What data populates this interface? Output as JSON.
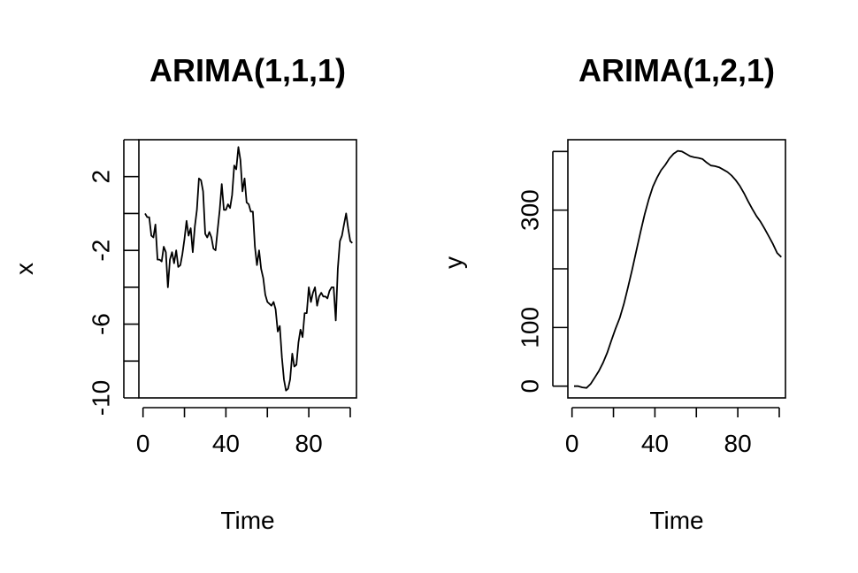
{
  "chart_data": [
    {
      "type": "line",
      "title": "ARIMA(1,1,1)",
      "xlabel": "Time",
      "ylabel": "x",
      "xlim": [
        -2,
        103
      ],
      "ylim": [
        -10,
        4
      ],
      "xticks": [
        0,
        20,
        40,
        60,
        80,
        100
      ],
      "xtick_labels": [
        "0",
        "",
        "40",
        "",
        "80",
        ""
      ],
      "yticks": [
        -10,
        -8,
        -6,
        -4,
        -2,
        0,
        2,
        4
      ],
      "ytick_labels": [
        "-10",
        "",
        "-6",
        "",
        "-2",
        "",
        "2",
        ""
      ],
      "grid": false,
      "series": [
        {
          "x": [
            1,
            2,
            3,
            4,
            5,
            6,
            7,
            8,
            9,
            10,
            11,
            12,
            13,
            14,
            15,
            16,
            17,
            18,
            19,
            20,
            21,
            22,
            23,
            24,
            25,
            26,
            27,
            28,
            29,
            30,
            31,
            32,
            33,
            34,
            35,
            36,
            37,
            38,
            39,
            40,
            41,
            42,
            43,
            44,
            45,
            46,
            47,
            48,
            49,
            50,
            51,
            52,
            53,
            54,
            55,
            56,
            57,
            58,
            59,
            60,
            61,
            62,
            63,
            64,
            65,
            66,
            67,
            68,
            69,
            70,
            71,
            72,
            73,
            74,
            75,
            76,
            77,
            78,
            79,
            80,
            81,
            82,
            83,
            84,
            85,
            86,
            87,
            88,
            89,
            90,
            91,
            92,
            93,
            94,
            95,
            96,
            97,
            98,
            99,
            100,
            101
          ],
          "values": [
            0.0,
            -0.2,
            -0.2,
            -1.2,
            -1.3,
            -0.6,
            -2.5,
            -2.5,
            -2.6,
            -1.8,
            -2.1,
            -4.0,
            -2.5,
            -2.1,
            -2.7,
            -2.0,
            -2.9,
            -2.8,
            -2.2,
            -1.4,
            -0.4,
            -1.2,
            -0.8,
            -2.1,
            -0.7,
            0.2,
            1.9,
            1.8,
            1.2,
            -1.1,
            -1.3,
            -1.0,
            -1.3,
            -1.9,
            -2.0,
            -0.9,
            0.2,
            1.6,
            0.2,
            0.2,
            0.5,
            0.3,
            1.0,
            2.6,
            2.4,
            3.6,
            2.9,
            1.2,
            1.9,
            0.6,
            0.5,
            0.1,
            0.1,
            -1.8,
            -2.8,
            -2.0,
            -3.0,
            -3.5,
            -4.4,
            -4.8,
            -4.9,
            -5.0,
            -4.8,
            -5.2,
            -6.4,
            -6.1,
            -7.8,
            -9.0,
            -9.6,
            -9.5,
            -9.0,
            -7.6,
            -8.3,
            -8.2,
            -7.0,
            -6.3,
            -6.7,
            -5.4,
            -5.4,
            -4.0,
            -4.8,
            -4.3,
            -4.0,
            -5.0,
            -4.5,
            -4.3,
            -4.5,
            -4.5,
            -4.6,
            -4.2,
            -4.0,
            -4.0,
            -5.8,
            -3.0,
            -1.5,
            -1.2,
            -0.6,
            0.0,
            -0.8,
            -1.5,
            -1.6
          ]
        }
      ]
    },
    {
      "type": "line",
      "title": "ARIMA(1,2,1)",
      "xlabel": "Time",
      "ylabel": "y",
      "xlim": [
        -2,
        103
      ],
      "ylim": [
        -20,
        420
      ],
      "xticks": [
        0,
        20,
        40,
        60,
        80,
        100
      ],
      "xtick_labels": [
        "0",
        "",
        "40",
        "",
        "80",
        ""
      ],
      "yticks": [
        0,
        100,
        200,
        300,
        400
      ],
      "ytick_labels": [
        "0",
        "100",
        "",
        "300",
        ""
      ],
      "grid": false,
      "series": [
        {
          "x": [
            1,
            3,
            5,
            7,
            9,
            11,
            13,
            15,
            17,
            19,
            21,
            23,
            25,
            27,
            29,
            31,
            33,
            35,
            37,
            39,
            41,
            43,
            45,
            47,
            49,
            51,
            53,
            55,
            57,
            59,
            61,
            63,
            65,
            67,
            69,
            71,
            73,
            75,
            77,
            79,
            81,
            83,
            85,
            87,
            89,
            91,
            93,
            95,
            97,
            99,
            101
          ],
          "values": [
            0,
            0,
            -2,
            -3,
            4,
            15,
            26,
            40,
            57,
            78,
            98,
            116,
            140,
            168,
            198,
            230,
            262,
            292,
            318,
            340,
            355,
            368,
            377,
            388,
            396,
            401,
            400,
            396,
            392,
            390,
            389,
            387,
            381,
            376,
            375,
            373,
            369,
            365,
            359,
            351,
            341,
            329,
            315,
            302,
            290,
            280,
            268,
            255,
            242,
            227,
            220
          ]
        }
      ]
    }
  ]
}
